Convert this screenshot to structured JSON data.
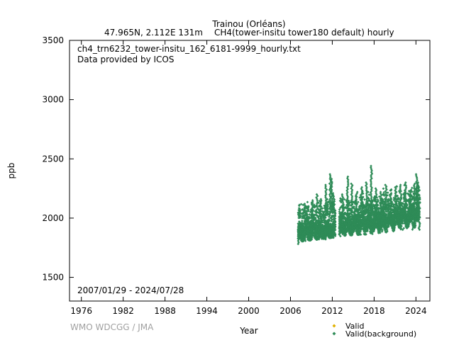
{
  "chart_data": {
    "type": "scatter",
    "title_line1": "Trainou (Orléans)",
    "title_line2_left": "47.965N, 2.112E 131m",
    "title_line2_right": "CH4(tower-insitu tower180 default) hourly",
    "file_label": "ch4_trn6232_tower-insitu_162_6181-9999_hourly.txt",
    "provider_label": "Data provided by ICOS",
    "date_range": "2007/01/29 - 2024/07/28",
    "xlabel": "Year",
    "ylabel": "ppb",
    "watermark": "WMO WDCGG / JMA",
    "xlim": [
      1974.3,
      2026.0
    ],
    "ylim": [
      1300,
      3500
    ],
    "xticks": [
      1976,
      1982,
      1988,
      1994,
      2000,
      2006,
      2012,
      2018,
      2024
    ],
    "yticks": [
      1500,
      2000,
      2500,
      3000,
      3500
    ],
    "legend": [
      {
        "label": "Valid",
        "color": "#e0b000"
      },
      {
        "label": "Valid(background)",
        "color": "#2e8b57"
      }
    ],
    "series": [
      {
        "name": "Valid(background)",
        "color": "#2e8b57",
        "segments": [
          {
            "x": [
              2007.08,
              2012.45
            ],
            "base": [
              1870,
              1885
            ],
            "spread": [
              1800,
              2120
            ]
          },
          {
            "x": [
              2013.0,
              2024.57
            ],
            "base": [
              1905,
              2010
            ],
            "spread": [
              1850,
              2260
            ]
          }
        ],
        "spikes": [
          [
            2007.3,
            2080
          ],
          [
            2008.0,
            2120
          ],
          [
            2008.6,
            2100
          ],
          [
            2009.2,
            2150
          ],
          [
            2009.8,
            2200
          ],
          [
            2010.4,
            2160
          ],
          [
            2011.1,
            2280
          ],
          [
            2011.7,
            2370
          ],
          [
            2011.9,
            2330
          ],
          [
            2012.2,
            2210
          ],
          [
            2013.5,
            2200
          ],
          [
            2014.2,
            2350
          ],
          [
            2014.8,
            2290
          ],
          [
            2015.5,
            2220
          ],
          [
            2016.2,
            2260
          ],
          [
            2016.9,
            2300
          ],
          [
            2017.6,
            2440
          ],
          [
            2018.3,
            2250
          ],
          [
            2019.0,
            2220
          ],
          [
            2019.7,
            2280
          ],
          [
            2020.4,
            2210
          ],
          [
            2021.1,
            2260
          ],
          [
            2021.8,
            2280
          ],
          [
            2022.5,
            2300
          ],
          [
            2023.2,
            2230
          ],
          [
            2023.8,
            2290
          ],
          [
            2024.1,
            2370
          ],
          [
            2024.3,
            2300
          ]
        ],
        "dips": [
          [
            2007.2,
            1780
          ],
          [
            2008.1,
            1800
          ],
          [
            2009.0,
            1810
          ],
          [
            2010.1,
            1815
          ],
          [
            2011.0,
            1820
          ],
          [
            2012.1,
            1825
          ],
          [
            2013.1,
            1840
          ],
          [
            2014.5,
            1850
          ],
          [
            2016.0,
            1860
          ],
          [
            2017.5,
            1865
          ],
          [
            2019.2,
            1880
          ],
          [
            2020.8,
            1900
          ],
          [
            2022.2,
            1915
          ],
          [
            2023.6,
            1930
          ],
          [
            2024.5,
            1955
          ]
        ]
      }
    ]
  }
}
